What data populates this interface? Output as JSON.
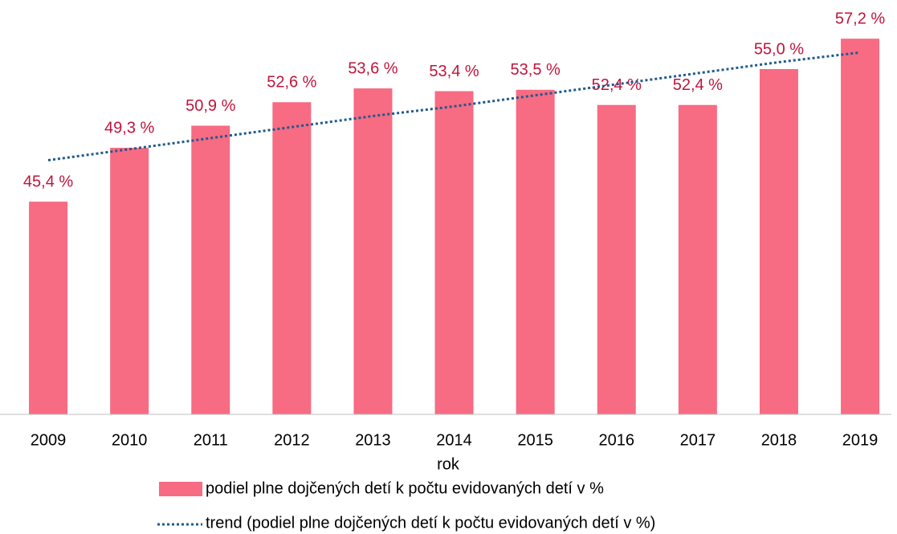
{
  "chart_data": {
    "type": "bar",
    "categories": [
      "2009",
      "2010",
      "2011",
      "2012",
      "2013",
      "2014",
      "2015",
      "2016",
      "2017",
      "2018",
      "2019"
    ],
    "x_label": "rok",
    "series": [
      {
        "name": "podiel plne dojčených detí k počtu evidovaných detí v %",
        "type": "bar",
        "color": "#f76b83",
        "values": [
          45.4,
          49.3,
          50.9,
          52.6,
          53.6,
          53.4,
          53.5,
          52.4,
          52.4,
          55.0,
          57.2
        ],
        "value_labels": [
          "45,4 %",
          "49,3 %",
          "50,9 %",
          "52,6 %",
          "53,6 %",
          "53,4 %",
          "53,5 %",
          "52,4 %",
          "52,4 %",
          "55,0 %",
          "57,2 %"
        ],
        "label_color": "#c0143c"
      },
      {
        "name": "trend (podiel plne dojčených detí k počtu evidovaných detí v %)",
        "type": "line",
        "style": "dotted",
        "color": "#1f5b8c",
        "values": [
          48.4,
          49.2,
          50.0,
          50.8,
          51.6,
          52.3,
          53.1,
          53.9,
          54.7,
          55.5,
          56.2
        ]
      }
    ],
    "ylim": [
      30,
      60
    ],
    "legend": "bottom"
  }
}
